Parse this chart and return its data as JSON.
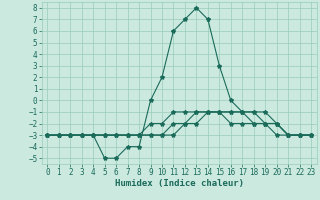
{
  "title": "",
  "xlabel": "Humidex (Indice chaleur)",
  "xlim": [
    -0.5,
    23.5
  ],
  "ylim": [
    -5.5,
    8.5
  ],
  "yticks": [
    -5,
    -4,
    -3,
    -2,
    -1,
    0,
    1,
    2,
    3,
    4,
    5,
    6,
    7,
    8
  ],
  "xticks": [
    0,
    1,
    2,
    3,
    4,
    5,
    6,
    7,
    8,
    9,
    10,
    11,
    12,
    13,
    14,
    15,
    16,
    17,
    18,
    19,
    20,
    21,
    22,
    23
  ],
  "background_color": "#cce9e0",
  "grid_color": "#99ccbb",
  "line_color": "#1a6b5a",
  "series": [
    {
      "x": [
        0,
        1,
        2,
        3,
        4,
        5,
        6,
        7,
        8,
        9,
        10,
        11,
        12,
        13,
        14,
        15,
        16,
        17,
        18,
        19,
        20,
        21,
        22,
        23
      ],
      "y": [
        -3,
        -3,
        -3,
        -3,
        -3,
        -5,
        -5,
        -4,
        -4,
        0,
        2,
        6,
        7,
        8,
        7,
        3,
        0,
        -1,
        -1,
        -2,
        -2,
        -3,
        -3,
        -3
      ]
    },
    {
      "x": [
        0,
        1,
        2,
        3,
        4,
        5,
        6,
        7,
        8,
        9,
        10,
        11,
        12,
        13,
        14,
        15,
        16,
        17,
        18,
        19,
        20,
        21,
        22,
        23
      ],
      "y": [
        -3,
        -3,
        -3,
        -3,
        -3,
        -3,
        -3,
        -3,
        -3,
        -3,
        -3,
        -3,
        -2,
        -2,
        -1,
        -1,
        -1,
        -1,
        -1,
        -1,
        -2,
        -3,
        -3,
        -3
      ]
    },
    {
      "x": [
        0,
        1,
        2,
        3,
        4,
        5,
        6,
        7,
        8,
        9,
        10,
        11,
        12,
        13,
        14,
        15,
        16,
        17,
        18,
        19,
        20,
        21,
        22,
        23
      ],
      "y": [
        -3,
        -3,
        -3,
        -3,
        -3,
        -3,
        -3,
        -3,
        -3,
        -2,
        -2,
        -1,
        -1,
        -1,
        -1,
        -1,
        -1,
        -1,
        -2,
        -2,
        -2,
        -3,
        -3,
        -3
      ]
    },
    {
      "x": [
        0,
        1,
        2,
        3,
        4,
        5,
        6,
        7,
        8,
        9,
        10,
        11,
        12,
        13,
        14,
        15,
        16,
        17,
        18,
        19,
        20,
        21,
        22,
        23
      ],
      "y": [
        -3,
        -3,
        -3,
        -3,
        -3,
        -3,
        -3,
        -3,
        -3,
        -3,
        -3,
        -2,
        -2,
        -1,
        -1,
        -1,
        -2,
        -2,
        -2,
        -2,
        -3,
        -3,
        -3,
        -3
      ]
    }
  ],
  "tick_fontsize": 5.5,
  "xlabel_fontsize": 6.5,
  "line_width": 0.8,
  "marker_size": 3
}
